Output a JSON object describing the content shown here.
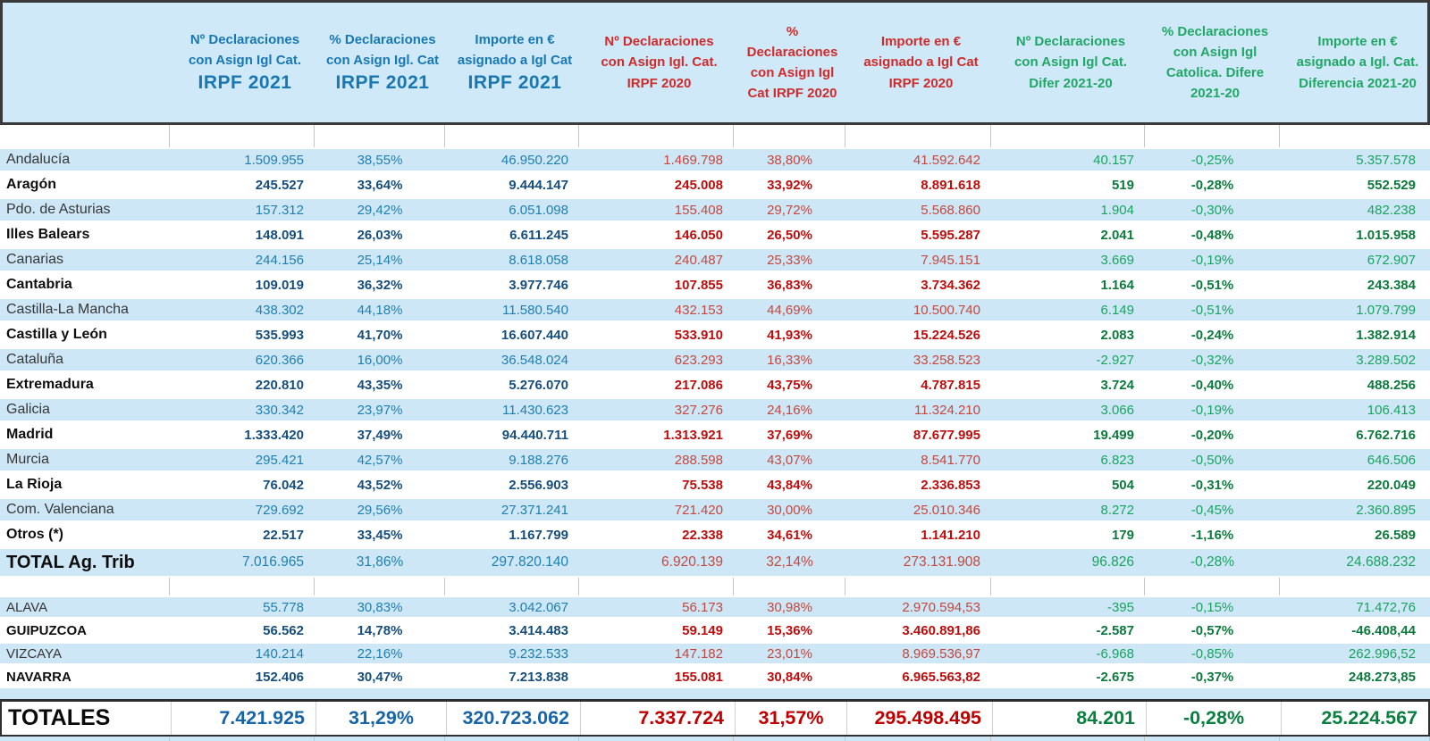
{
  "chart_data": {
    "type": "table",
    "row_header_label": "",
    "columns": [
      {
        "id": "n-decl-2021",
        "color": "blue",
        "align": "right",
        "big_last": true,
        "lines": [
          "Nº Declaraciones",
          "con Asign Igl Cat.",
          "IRPF 2021"
        ]
      },
      {
        "id": "pct-decl-2021",
        "color": "blue",
        "align": "center",
        "big_last": true,
        "lines": [
          "% Declaraciones",
          "con Asign Igl. Cat",
          "IRPF 2021"
        ]
      },
      {
        "id": "importe-2021",
        "color": "blue",
        "align": "right",
        "big_last": true,
        "lines": [
          "Importe en €",
          "asignado a Igl Cat",
          "IRPF 2021"
        ]
      },
      {
        "id": "n-decl-2020",
        "color": "red",
        "align": "right",
        "lines": [
          "Nº Declaraciones",
          "con Asign Igl. Cat.",
          "IRPF 2020"
        ]
      },
      {
        "id": "pct-decl-2020",
        "color": "red",
        "align": "center",
        "lines": [
          "%",
          "Declaraciones",
          "con Asign Igl",
          "Cat IRPF 2020"
        ]
      },
      {
        "id": "importe-2020",
        "color": "red",
        "align": "right",
        "lines": [
          "Importe en €",
          "asignado a Igl Cat",
          "IRPF 2020"
        ]
      },
      {
        "id": "n-decl-difer",
        "color": "green",
        "align": "right",
        "lines": [
          "Nº Declaraciones",
          "con Asign Igl Cat.",
          "Difer 2021-20"
        ]
      },
      {
        "id": "pct-decl-difer",
        "color": "green",
        "align": "center",
        "lines": [
          "% Declaraciones",
          "con Asign Igl",
          "Catolica. Difere",
          "2021-20"
        ]
      },
      {
        "id": "importe-difer",
        "color": "green",
        "align": "right",
        "lines": [
          "Importe en €",
          "asignado a Igl. Cat.",
          "Diferencia 2021-20"
        ]
      }
    ],
    "rows": [
      {
        "region": "Andalucía",
        "style": "stripe",
        "values": [
          "1.509.955",
          "38,55%",
          "46.950.220",
          "1.469.798",
          "38,80%",
          "41.592.642",
          "40.157",
          "-0,25%",
          "5.357.578"
        ]
      },
      {
        "region": "Aragón",
        "style": "bold",
        "values": [
          "245.527",
          "33,64%",
          "9.444.147",
          "245.008",
          "33,92%",
          "8.891.618",
          "519",
          "-0,28%",
          "552.529"
        ]
      },
      {
        "region": "Pdo. de Asturias",
        "style": "stripe",
        "values": [
          "157.312",
          "29,42%",
          "6.051.098",
          "155.408",
          "29,72%",
          "5.568.860",
          "1.904",
          "-0,30%",
          "482.238"
        ]
      },
      {
        "region": "Illes Balears",
        "style": "bold",
        "values": [
          "148.091",
          "26,03%",
          "6.611.245",
          "146.050",
          "26,50%",
          "5.595.287",
          "2.041",
          "-0,48%",
          "1.015.958"
        ]
      },
      {
        "region": "Canarias",
        "style": "stripe",
        "values": [
          "244.156",
          "25,14%",
          "8.618.058",
          "240.487",
          "25,33%",
          "7.945.151",
          "3.669",
          "-0,19%",
          "672.907"
        ]
      },
      {
        "region": "Cantabria",
        "style": "bold",
        "values": [
          "109.019",
          "36,32%",
          "3.977.746",
          "107.855",
          "36,83%",
          "3.734.362",
          "1.164",
          "-0,51%",
          "243.384"
        ]
      },
      {
        "region": "Castilla-La Mancha",
        "style": "stripe",
        "values": [
          "438.302",
          "44,18%",
          "11.580.540",
          "432.153",
          "44,69%",
          "10.500.740",
          "6.149",
          "-0,51%",
          "1.079.799"
        ]
      },
      {
        "region": "Castilla y León",
        "style": "bold",
        "values": [
          "535.993",
          "41,70%",
          "16.607.440",
          "533.910",
          "41,93%",
          "15.224.526",
          "2.083",
          "-0,24%",
          "1.382.914"
        ]
      },
      {
        "region": "Cataluña",
        "style": "stripe",
        "values": [
          "620.366",
          "16,00%",
          "36.548.024",
          "623.293",
          "16,33%",
          "33.258.523",
          "-2.927",
          "-0,32%",
          "3.289.502"
        ]
      },
      {
        "region": "Extremadura",
        "style": "bold",
        "values": [
          "220.810",
          "43,35%",
          "5.276.070",
          "217.086",
          "43,75%",
          "4.787.815",
          "3.724",
          "-0,40%",
          "488.256"
        ]
      },
      {
        "region": "Galicia",
        "style": "stripe",
        "values": [
          "330.342",
          "23,97%",
          "11.430.623",
          "327.276",
          "24,16%",
          "11.324.210",
          "3.066",
          "-0,19%",
          "106.413"
        ]
      },
      {
        "region": "Madrid",
        "style": "bold",
        "values": [
          "1.333.420",
          "37,49%",
          "94.440.711",
          "1.313.921",
          "37,69%",
          "87.677.995",
          "19.499",
          "-0,20%",
          "6.762.716"
        ]
      },
      {
        "region": "Murcia",
        "style": "stripe",
        "values": [
          "295.421",
          "42,57%",
          "9.188.276",
          "288.598",
          "43,07%",
          "8.541.770",
          "6.823",
          "-0,50%",
          "646.506"
        ]
      },
      {
        "region": "La Rioja",
        "style": "bold",
        "values": [
          "76.042",
          "43,52%",
          "2.556.903",
          "75.538",
          "43,84%",
          "2.336.853",
          "504",
          "-0,31%",
          "220.049"
        ]
      },
      {
        "region": "Com. Valenciana",
        "style": "stripe",
        "values": [
          "729.692",
          "29,56%",
          "27.371.241",
          "721.420",
          "30,00%",
          "25.010.346",
          "8.272",
          "-0,45%",
          "2.360.895"
        ]
      },
      {
        "region": "Otros (*)",
        "style": "bold",
        "values": [
          "22.517",
          "33,45%",
          "1.167.799",
          "22.338",
          "34,61%",
          "1.141.210",
          "179",
          "-1,16%",
          "26.589"
        ]
      }
    ],
    "total_ag_trib": {
      "region": "TOTAL Ag. Trib",
      "values": [
        "7.016.965",
        "31,86%",
        "297.820.140",
        "6.920.139",
        "32,14%",
        "273.131.908",
        "96.826",
        "-0,28%",
        "24.688.232"
      ]
    },
    "foral_rows": [
      {
        "region": "ALAVA",
        "style": "stripe",
        "values": [
          "55.778",
          "30,83%",
          "3.042.067",
          "56.173",
          "30,98%",
          "2.970.594,53",
          "-395",
          "-0,15%",
          "71.472,76"
        ]
      },
      {
        "region": "GUIPUZCOA",
        "style": "bold",
        "values": [
          "56.562",
          "14,78%",
          "3.414.483",
          "59.149",
          "15,36%",
          "3.460.891,86",
          "-2.587",
          "-0,57%",
          "-46.408,44"
        ]
      },
      {
        "region": "VIZCAYA",
        "style": "stripe",
        "values": [
          "140.214",
          "22,16%",
          "9.232.533",
          "147.182",
          "23,01%",
          "8.969.536,97",
          "-6.968",
          "-0,85%",
          "262.996,52"
        ]
      },
      {
        "region": "NAVARRA",
        "style": "bold",
        "values": [
          "152.406",
          "30,47%",
          "7.213.838",
          "155.081",
          "30,84%",
          "6.965.563,82",
          "-2.675",
          "-0,37%",
          "248.273,85"
        ]
      }
    ],
    "totales": {
      "region": "TOTALES",
      "values": [
        "7.421.925",
        "31,29%",
        "320.723.062",
        "7.337.724",
        "31,57%",
        "295.498.495",
        "84.201",
        "-0,28%",
        "25.224.567"
      ]
    }
  },
  "colors": {
    "stripe_bg": "#cde7f7",
    "header_bg": "#cfe9f9",
    "header_blue": "#1878b4",
    "header_red": "#d02a2a",
    "header_green": "#21a765",
    "value_blue": "#1f7fae",
    "value_blue_bold": "#164e7d",
    "value_red": "#c5473d",
    "value_red_bold": "#bf0d0d",
    "value_green": "#1aa35f",
    "value_green_bold": "#0c7a3d",
    "dark_border": "#3a3a3a"
  }
}
